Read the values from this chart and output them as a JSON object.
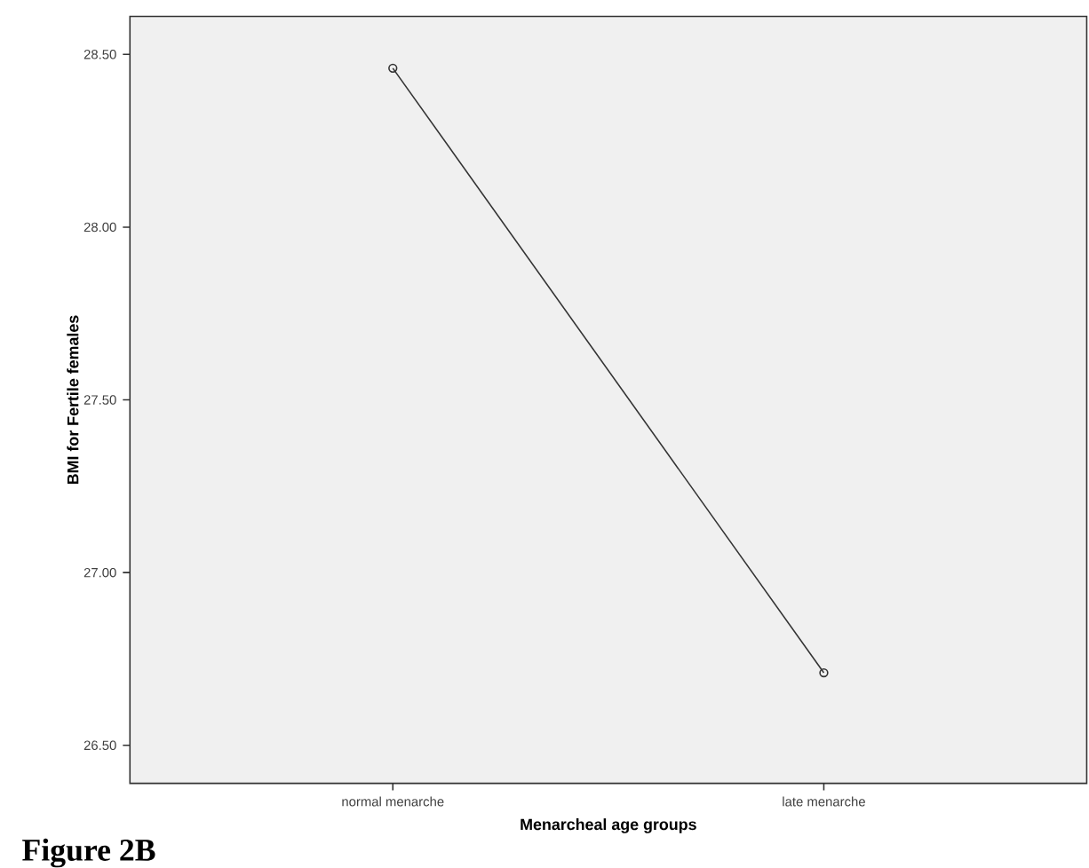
{
  "chart_data": {
    "type": "line",
    "xlabel": "Menarcheal age groups",
    "ylabel": "BMI for Fertile females",
    "categories": [
      "normal menarche",
      "late menarche"
    ],
    "values": [
      28.46,
      26.71
    ],
    "color": "#333333",
    "marker": "circle",
    "ylim": [
      26.39,
      28.61
    ],
    "yticks": [
      {
        "value": 26.5,
        "label": "26.50"
      },
      {
        "value": 27.0,
        "label": "27.00"
      },
      {
        "value": 27.5,
        "label": "27.50"
      },
      {
        "value": 28.0,
        "label": "28.00"
      },
      {
        "value": 28.5,
        "label": "28.50"
      }
    ],
    "annotations": [
      "Figure 2B"
    ]
  }
}
